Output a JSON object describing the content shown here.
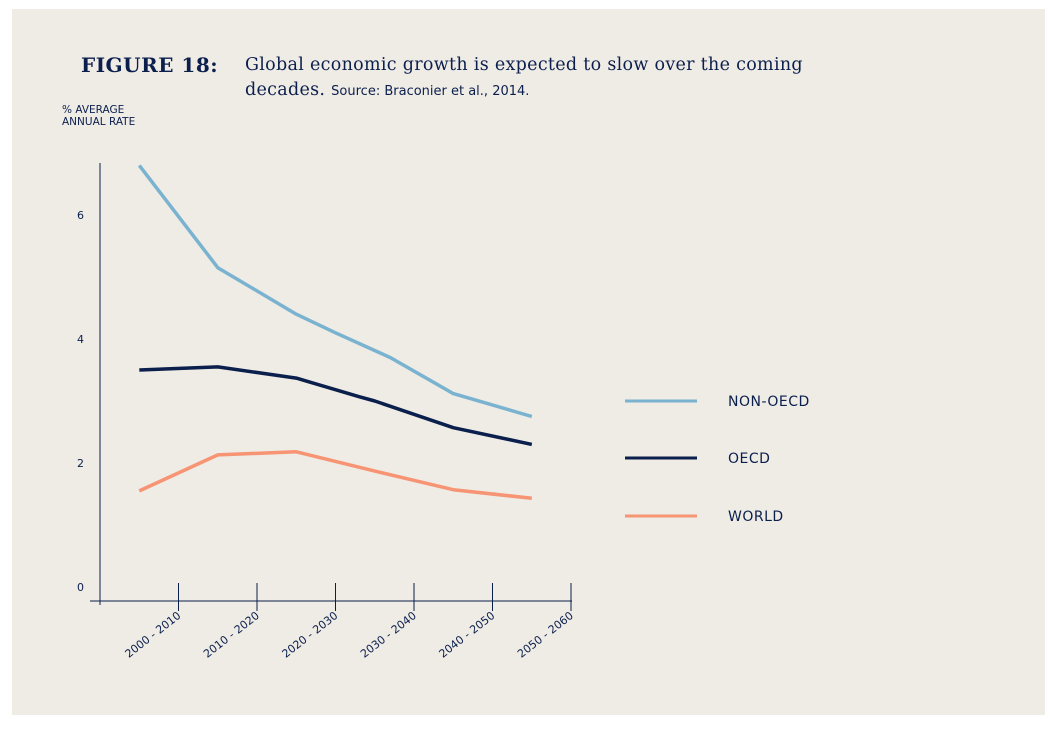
{
  "figure": {
    "label": "FIGURE 18:",
    "title": "Global economic growth is expected to slow over the coming decades.",
    "source": "Source: Braconier et al., 2014."
  },
  "chart_data": {
    "type": "line",
    "title": "Global economic growth is expected to slow over the coming decades.",
    "ylabel_line1": "% AVERAGE",
    "ylabel_line2": "ANNUAL RATE",
    "xlabel": "",
    "categories": [
      "2000 - 2010",
      "2010 - 2020",
      "2020 - 2030",
      "2030 - 2040",
      "2040 - 2050",
      "2050 - 2060"
    ],
    "yticks": [
      0,
      2,
      4,
      6
    ],
    "ylim": [
      0,
      7
    ],
    "grid": false,
    "legend_position": "right",
    "series": [
      {
        "name": "NON-OECD",
        "color": "#7ab3cf",
        "x": [
          2005,
          2015,
          2025,
          2030,
          2037,
          2045,
          2055
        ],
        "values": [
          6.8,
          5.15,
          4.4,
          4.1,
          3.7,
          3.12,
          2.75
        ]
      },
      {
        "name": "OECD",
        "color": "#0b1f4d",
        "x": [
          2005,
          2015,
          2025,
          2033,
          2035,
          2045,
          2055
        ],
        "values": [
          3.5,
          3.55,
          3.37,
          3.07,
          3.0,
          2.57,
          2.3
        ]
      },
      {
        "name": "WORLD",
        "color": "#f79474",
        "x": [
          2005,
          2015,
          2025,
          2035,
          2045,
          2055
        ],
        "values": [
          1.55,
          2.13,
          2.18,
          1.87,
          1.57,
          1.43
        ]
      }
    ]
  }
}
